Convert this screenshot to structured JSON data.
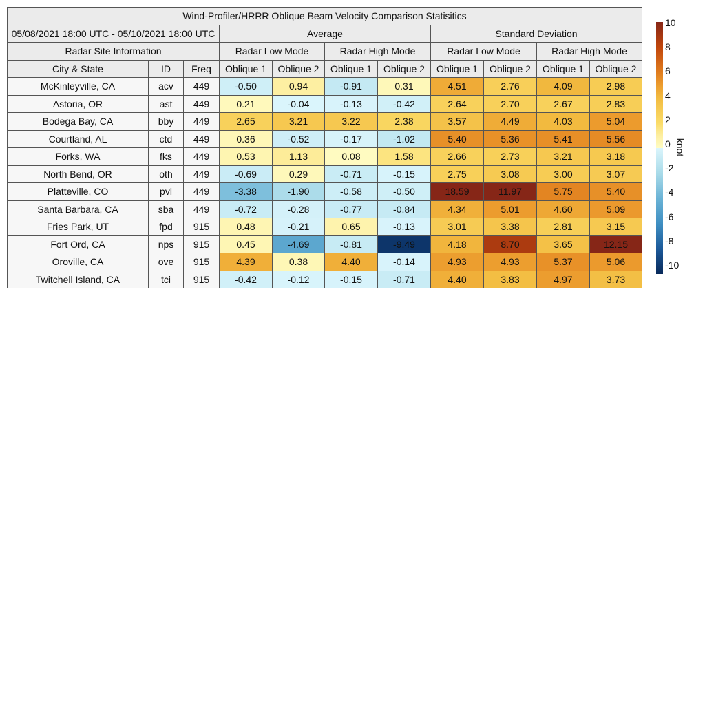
{
  "title": "Wind-Profiler/HRRR Oblique Beam Velocity Comparison Statisitics",
  "period": "05/08/2021 18:00 UTC - 05/10/2021 18:00 UTC",
  "group_average": "Average",
  "group_std": "Standard Deviation",
  "site_info": "Radar Site Information",
  "mode_low": "Radar Low Mode",
  "mode_high": "Radar High Mode",
  "col_city": "City & State",
  "col_id": "ID",
  "col_freq": "Freq",
  "oblique1": "Oblique 1",
  "oblique2": "Oblique 2",
  "colorbar": {
    "label": "knot",
    "ticks": [
      "10",
      "8",
      "6",
      "4",
      "2",
      "0",
      "-2",
      "-4",
      "-6",
      "-8",
      "-10"
    ],
    "range": [
      -10,
      10
    ]
  },
  "chart_data": {
    "type": "heatmap",
    "columns": [
      "Average Low Oblique 1",
      "Average Low Oblique 2",
      "Average High Oblique 1",
      "Average High Oblique 2",
      "Std Low Oblique 1",
      "Std Low Oblique 2",
      "Std High Oblique 1",
      "Std High Oblique 2"
    ],
    "rows": [
      {
        "city": "McKinleyville, CA",
        "id": "acv",
        "freq": "449",
        "values": [
          "-0.50",
          "0.94",
          "-0.91",
          "0.31",
          "4.51",
          "2.76",
          "4.09",
          "2.98"
        ]
      },
      {
        "city": "Astoria, OR",
        "id": "ast",
        "freq": "449",
        "values": [
          "0.21",
          "-0.04",
          "-0.13",
          "-0.42",
          "2.64",
          "2.70",
          "2.67",
          "2.83"
        ]
      },
      {
        "city": "Bodega Bay, CA",
        "id": "bby",
        "freq": "449",
        "values": [
          "2.65",
          "3.21",
          "3.22",
          "2.38",
          "3.57",
          "4.49",
          "4.03",
          "5.04"
        ]
      },
      {
        "city": "Courtland, AL",
        "id": "ctd",
        "freq": "449",
        "values": [
          "0.36",
          "-0.52",
          "-0.17",
          "-1.02",
          "5.40",
          "5.36",
          "5.41",
          "5.56"
        ]
      },
      {
        "city": "Forks, WA",
        "id": "fks",
        "freq": "449",
        "values": [
          "0.53",
          "1.13",
          "0.08",
          "1.58",
          "2.66",
          "2.73",
          "3.21",
          "3.18"
        ]
      },
      {
        "city": "North Bend, OR",
        "id": "oth",
        "freq": "449",
        "values": [
          "-0.69",
          "0.29",
          "-0.71",
          "-0.15",
          "2.75",
          "3.08",
          "3.00",
          "3.07"
        ]
      },
      {
        "city": "Platteville, CO",
        "id": "pvl",
        "freq": "449",
        "values": [
          "-3.38",
          "-1.90",
          "-0.58",
          "-0.50",
          "18.59",
          "11.97",
          "5.75",
          "5.40"
        ]
      },
      {
        "city": "Santa Barbara, CA",
        "id": "sba",
        "freq": "449",
        "values": [
          "-0.72",
          "-0.28",
          "-0.77",
          "-0.84",
          "4.34",
          "5.01",
          "4.60",
          "5.09"
        ]
      },
      {
        "city": "Fries Park, UT",
        "id": "fpd",
        "freq": "915",
        "values": [
          "0.48",
          "-0.21",
          "0.65",
          "-0.13",
          "3.01",
          "3.38",
          "2.81",
          "3.15"
        ]
      },
      {
        "city": "Fort Ord, CA",
        "id": "nps",
        "freq": "915",
        "values": [
          "0.45",
          "-4.69",
          "-0.81",
          "-9.49",
          "4.18",
          "8.70",
          "3.65",
          "12.15"
        ]
      },
      {
        "city": "Oroville, CA",
        "id": "ove",
        "freq": "915",
        "values": [
          "4.39",
          "0.38",
          "4.40",
          "-0.14",
          "4.93",
          "4.93",
          "5.37",
          "5.06"
        ]
      },
      {
        "city": "Twitchell Island, CA",
        "id": "tci",
        "freq": "915",
        "values": [
          "-0.42",
          "-0.12",
          "-0.15",
          "-0.71",
          "4.40",
          "3.83",
          "4.97",
          "3.73"
        ]
      }
    ]
  }
}
